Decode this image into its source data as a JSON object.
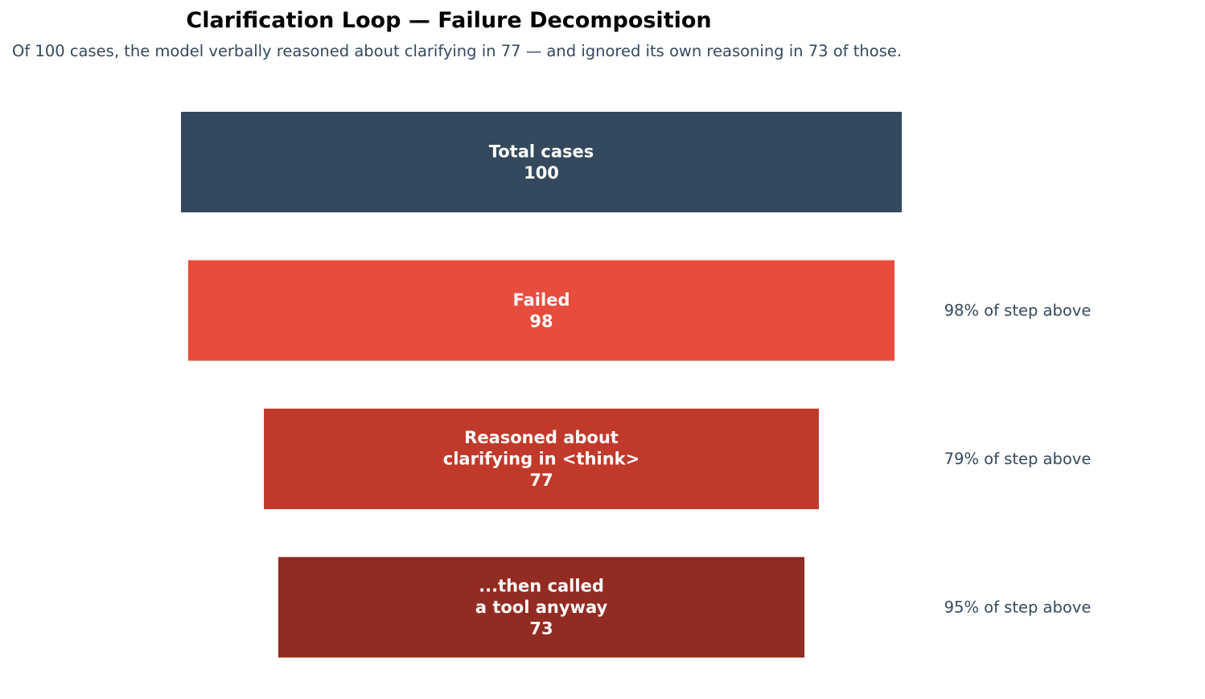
{
  "chart_data": {
    "type": "funnel",
    "title": "Clarification Loop — Failure Decomposition",
    "subtitle": "Of 100 cases, the model verbally reasoned about clarifying in 77 — and ignored its own reasoning in 73 of those.",
    "stages": [
      {
        "label": [
          "Total cases"
        ],
        "value": 100,
        "color": "#34495e",
        "pct_label": ""
      },
      {
        "label": [
          "Failed"
        ],
        "value": 98,
        "color": "#e74c3c",
        "pct_label": "98% of step above"
      },
      {
        "label": [
          "Reasoned about",
          "clarifying in <think>"
        ],
        "value": 77,
        "color": "#c0392b",
        "pct_label": "79% of step above"
      },
      {
        "label": [
          "...then called",
          "a tool anyway"
        ],
        "value": 73,
        "color": "#922b21",
        "pct_label": "95% of step above"
      }
    ],
    "xlim": [
      0,
      100
    ]
  }
}
